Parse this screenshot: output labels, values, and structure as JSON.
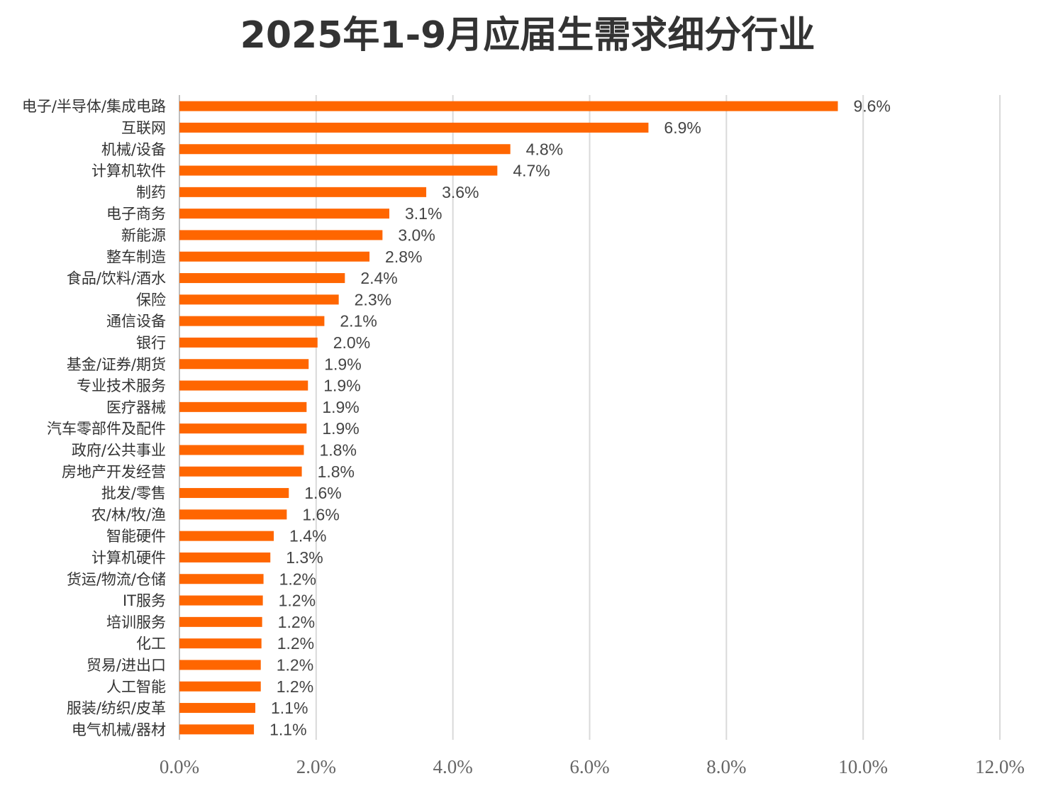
{
  "colors": {
    "bar": "#ff6600",
    "grid": "#d9d9d9",
    "title": "#333333"
  },
  "chart_data": {
    "type": "bar",
    "orientation": "horizontal",
    "title": "2025年1-9月应届生需求细分行业",
    "xlabel": "",
    "ylabel": "",
    "xlim": [
      0,
      12
    ],
    "grid": "vertical",
    "ticks": [
      "0.0%",
      "2.0%",
      "4.0%",
      "6.0%",
      "8.0%",
      "10.0%",
      "12.0%"
    ],
    "categories": [
      "电子/半导体/集成电路",
      "互联网",
      "机械/设备",
      "计算机软件",
      "制药",
      "电子商务",
      "新能源",
      "整车制造",
      "食品/饮料/酒水",
      "保险",
      "通信设备",
      "银行",
      "基金/证券/期货",
      "专业技术服务",
      "医疗器械",
      "汽车零部件及配件",
      "政府/公共事业",
      "房地产开发经营",
      "批发/零售",
      "农/林/牧/渔",
      "智能硬件",
      "计算机硬件",
      "货运/物流/仓储",
      "IT服务",
      "培训服务",
      "化工",
      "贸易/进出口",
      "人工智能",
      "服装/纺织/皮革",
      "电气机械/器材"
    ],
    "values": [
      9.63,
      6.86,
      4.84,
      4.65,
      3.61,
      3.07,
      2.97,
      2.78,
      2.42,
      2.33,
      2.12,
      2.02,
      1.89,
      1.88,
      1.86,
      1.86,
      1.82,
      1.79,
      1.6,
      1.57,
      1.38,
      1.33,
      1.23,
      1.22,
      1.21,
      1.2,
      1.19,
      1.19,
      1.11,
      1.09
    ],
    "labels": [
      "9.6%",
      "6.9%",
      "4.8%",
      "4.7%",
      "3.6%",
      "3.1%",
      "3.0%",
      "2.8%",
      "2.4%",
      "2.3%",
      "2.1%",
      "2.0%",
      "1.9%",
      "1.9%",
      "1.9%",
      "1.9%",
      "1.8%",
      "1.8%",
      "1.6%",
      "1.6%",
      "1.4%",
      "1.3%",
      "1.2%",
      "1.2%",
      "1.2%",
      "1.2%",
      "1.2%",
      "1.2%",
      "1.1%",
      "1.1%"
    ]
  }
}
